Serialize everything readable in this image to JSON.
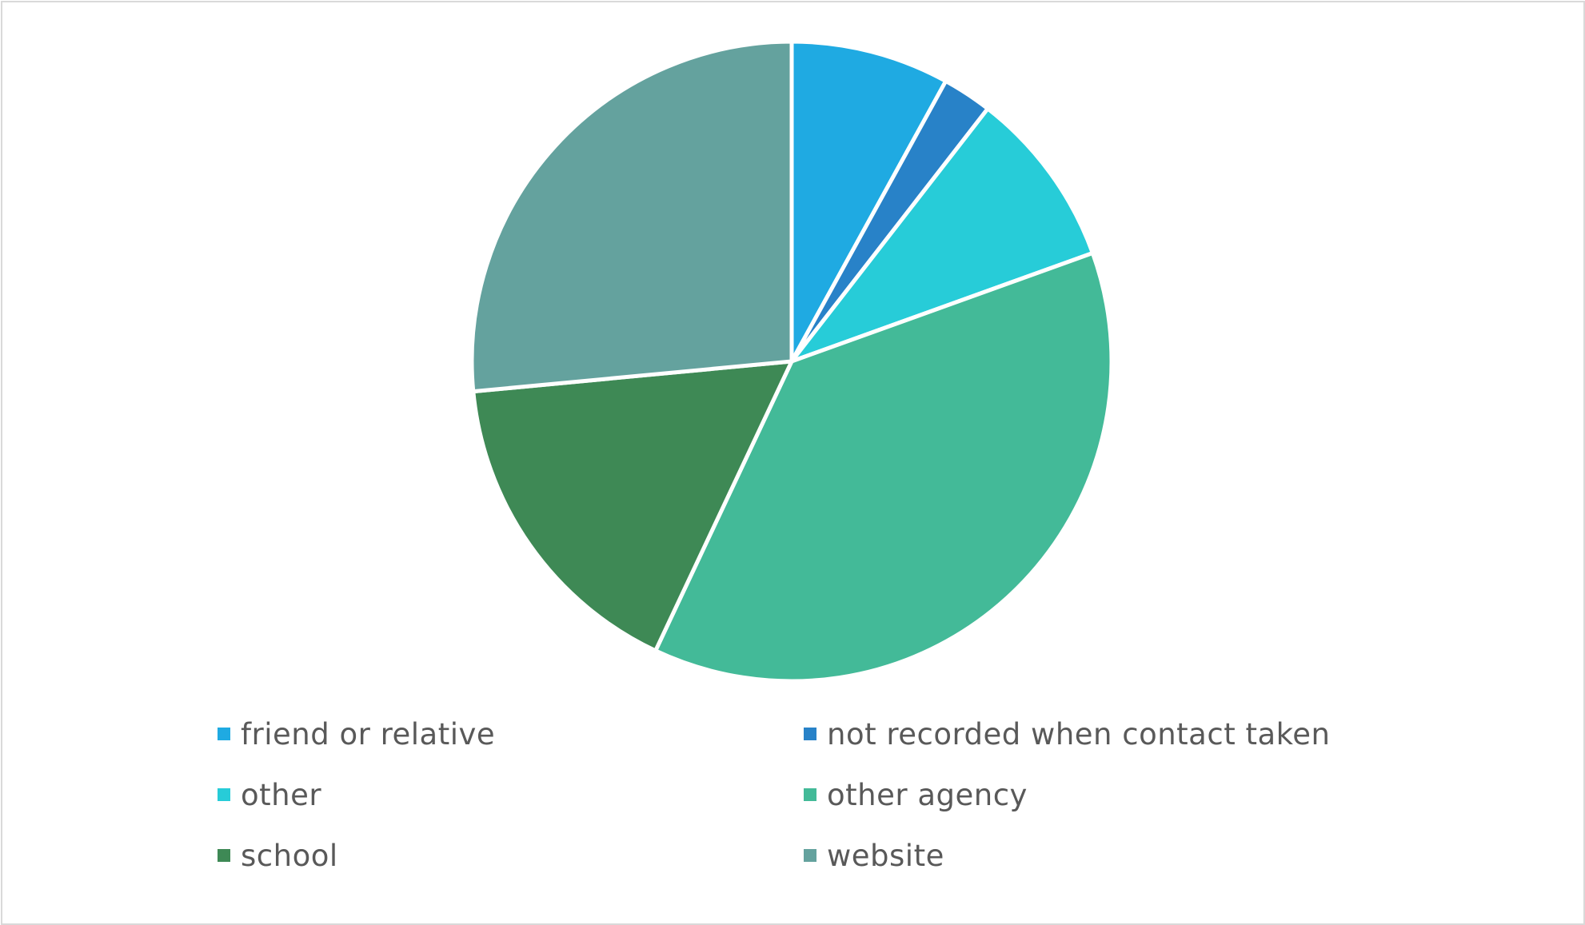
{
  "chart_data": {
    "type": "pie",
    "title": "",
    "slices": [
      {
        "label": "friend or relative",
        "value": 8,
        "color": "#1FAAE2"
      },
      {
        "label": "not recorded when contact taken",
        "value": 2.5,
        "color": "#2882C8"
      },
      {
        "label": "other",
        "value": 9,
        "color": "#27CCD8"
      },
      {
        "label": "other agency",
        "value": 37.5,
        "color": "#43BA98"
      },
      {
        "label": "school",
        "value": 16.5,
        "color": "#3E8955"
      },
      {
        "label": "website",
        "value": 26.5,
        "color": "#64A29E"
      }
    ],
    "legend_position": "bottom",
    "start_angle": "12 o'clock",
    "direction": "clockwise"
  }
}
